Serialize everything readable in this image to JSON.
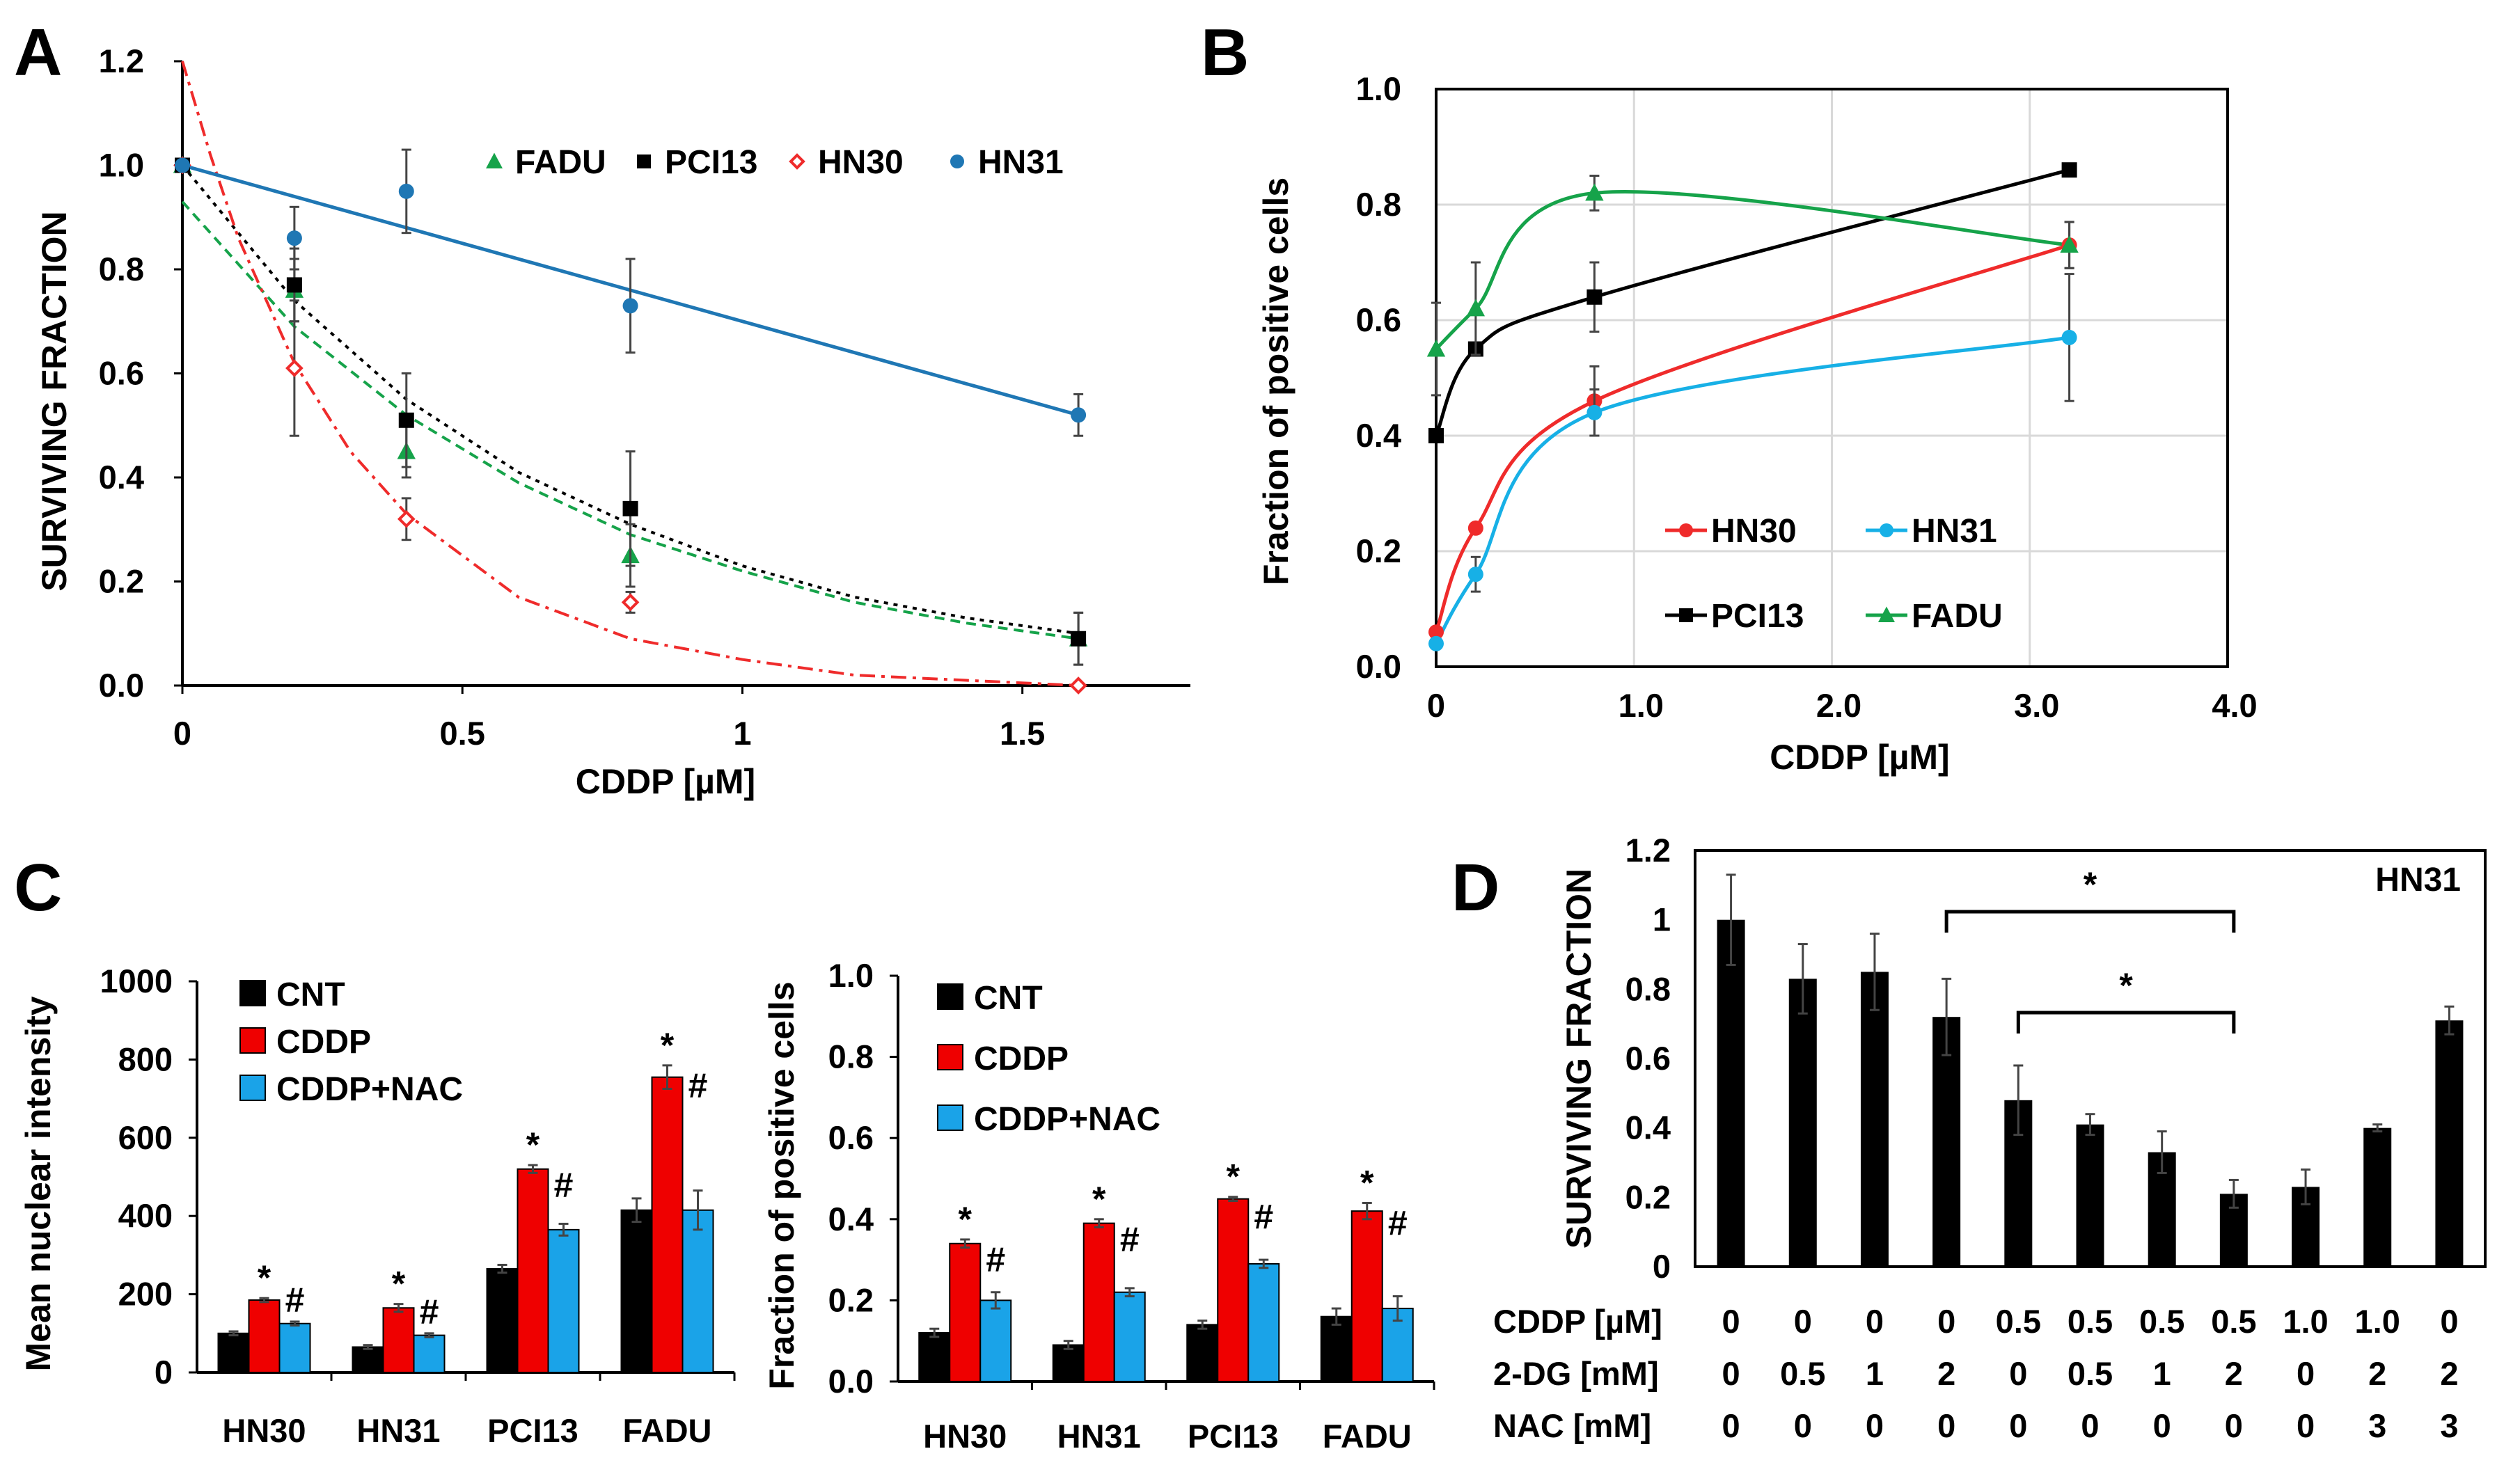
{
  "panels": {
    "A": "A",
    "B": "B",
    "C": "C",
    "D": "D"
  },
  "chart_data": [
    {
      "id": "A",
      "type": "scatter",
      "title": "",
      "xlabel": "CDDP [µM]",
      "ylabel": "SURVIVING FRACTION",
      "xlim": [
        0,
        1.8
      ],
      "ylim": [
        0,
        1.2
      ],
      "xticks": [
        "0",
        "0.5",
        "1",
        "1.5"
      ],
      "yticks": [
        "0.0",
        "0.2",
        "0.4",
        "0.6",
        "0.8",
        "1.0",
        "1.2"
      ],
      "legend_position": "top",
      "series": [
        {
          "name": "FADU",
          "color": "#16a34a",
          "marker": "triangle",
          "fit": "dashed",
          "x": [
            0,
            0.2,
            0.4,
            0.8,
            1.6
          ],
          "y": [
            1.0,
            0.76,
            0.45,
            0.25,
            0.09
          ],
          "err": [
            0.0,
            0.06,
            0.05,
            0.06,
            0.05
          ],
          "fit_curve": {
            "x": [
              0,
              0.2,
              0.4,
              0.6,
              0.8,
              1.0,
              1.2,
              1.4,
              1.6
            ],
            "y": [
              0.93,
              0.69,
              0.52,
              0.39,
              0.29,
              0.22,
              0.16,
              0.12,
              0.09
            ]
          }
        },
        {
          "name": "PCI13",
          "color": "#000000",
          "marker": "square",
          "fit": "dotted",
          "x": [
            0,
            0.2,
            0.4,
            0.8,
            1.6
          ],
          "y": [
            1.0,
            0.77,
            0.51,
            0.34,
            0.09
          ],
          "err": [
            0.0,
            0.07,
            0.09,
            0.11,
            0.05
          ],
          "fit_curve": {
            "x": [
              0,
              0.2,
              0.4,
              0.6,
              0.8,
              1.0,
              1.2,
              1.4,
              1.6
            ],
            "y": [
              1.0,
              0.74,
              0.55,
              0.41,
              0.31,
              0.23,
              0.17,
              0.13,
              0.1
            ]
          }
        },
        {
          "name": "HN30",
          "color": "#ef2b2b",
          "marker": "diamond",
          "fit": "dashdot",
          "x": [
            0,
            0.2,
            0.4,
            0.8,
            1.6
          ],
          "y": [
            1.0,
            0.61,
            0.32,
            0.16,
            0.0
          ],
          "err": [
            0.0,
            0.13,
            0.04,
            0.02,
            0.0
          ],
          "fit_curve": {
            "x": [
              0,
              0.05,
              0.1,
              0.2,
              0.3,
              0.4,
              0.6,
              0.8,
              1.0,
              1.2,
              1.4,
              1.6
            ],
            "y": [
              1.2,
              1.02,
              0.86,
              0.62,
              0.45,
              0.33,
              0.17,
              0.09,
              0.05,
              0.02,
              0.01,
              0.0
            ]
          }
        },
        {
          "name": "HN31",
          "color": "#1f77b4",
          "marker": "circle",
          "fit": "solid",
          "x": [
            0,
            0.2,
            0.4,
            0.8,
            1.6
          ],
          "y": [
            1.0,
            0.86,
            0.95,
            0.73,
            0.52
          ],
          "err": [
            0.0,
            0.06,
            0.08,
            0.09,
            0.04
          ],
          "fit_curve": {
            "x": [
              0,
              1.6
            ],
            "y": [
              1.0,
              0.52
            ]
          }
        }
      ]
    },
    {
      "id": "B",
      "type": "line",
      "title": "",
      "xlabel": "CDDP [µM]",
      "ylabel": "Fraction of positive cells",
      "xlim": [
        0,
        4.0
      ],
      "ylim": [
        0,
        1.0
      ],
      "xticks": [
        "0",
        "1.0",
        "2.0",
        "3.0",
        "4.0"
      ],
      "yticks": [
        "0.0",
        "0.2",
        "0.4",
        "0.6",
        "0.8",
        "1.0"
      ],
      "grid": true,
      "legend_position": "bottom-right",
      "series": [
        {
          "name": "HN30",
          "color": "#ef2b2b",
          "marker": "circle",
          "x": [
            0,
            0.2,
            0.8,
            3.2
          ],
          "y": [
            0.06,
            0.24,
            0.46,
            0.73
          ],
          "err": [
            0.0,
            0.0,
            0.06,
            0.04
          ]
        },
        {
          "name": "HN31",
          "color": "#17b0e6",
          "marker": "circle",
          "x": [
            0,
            0.2,
            0.8,
            3.2
          ],
          "y": [
            0.04,
            0.16,
            0.44,
            0.57
          ],
          "err": [
            0.0,
            0.03,
            0.04,
            0.11
          ]
        },
        {
          "name": "PCI13",
          "color": "#000000",
          "marker": "square",
          "x": [
            0,
            0.2,
            0.8,
            3.2
          ],
          "y": [
            0.4,
            0.55,
            0.64,
            0.86
          ],
          "err": [
            0.0,
            0.0,
            0.06,
            0.0
          ]
        },
        {
          "name": "FADU",
          "color": "#16a34a",
          "marker": "triangle",
          "x": [
            0,
            0.2,
            0.8,
            3.2
          ],
          "y": [
            0.55,
            0.62,
            0.82,
            0.73
          ],
          "err": [
            0.08,
            0.08,
            0.03,
            0.04
          ]
        }
      ]
    },
    {
      "id": "C1",
      "type": "bar",
      "title": "",
      "xlabel": "",
      "ylabel": "Mean nuclear intensity",
      "ylim": [
        0,
        1000
      ],
      "yticks": [
        "0",
        "200",
        "400",
        "600",
        "800",
        "1000"
      ],
      "categories": [
        "HN30",
        "HN31",
        "PCI13",
        "FADU"
      ],
      "legend_position": "top-left",
      "series": [
        {
          "name": "CNT",
          "color": "#000000",
          "values": [
            100,
            65,
            265,
            415
          ],
          "err": [
            5,
            5,
            10,
            30
          ]
        },
        {
          "name": "CDDP",
          "color": "#ef0000",
          "values": [
            185,
            165,
            520,
            755
          ],
          "err": [
            5,
            10,
            10,
            30
          ]
        },
        {
          "name": "CDDP+NAC",
          "color": "#1aa3e8",
          "values": [
            125,
            95,
            365,
            415
          ],
          "err": [
            5,
            5,
            15,
            50
          ]
        }
      ],
      "significance": [
        {
          "category": 0,
          "star": "*",
          "hash": "#"
        },
        {
          "category": 1,
          "star": "*",
          "hash": "#"
        },
        {
          "category": 2,
          "star": "*",
          "hash": "#"
        },
        {
          "category": 3,
          "star": "*",
          "hash": "#"
        }
      ]
    },
    {
      "id": "C2",
      "type": "bar",
      "title": "",
      "xlabel": "",
      "ylabel": "Fraction of positive cells",
      "ylim": [
        0,
        1.0
      ],
      "yticks": [
        "0.0",
        "0.2",
        "0.4",
        "0.6",
        "0.8",
        "1.0"
      ],
      "categories": [
        "HN30",
        "HN31",
        "PCI13",
        "FADU"
      ],
      "legend_position": "top",
      "series": [
        {
          "name": "CNT",
          "color": "#000000",
          "values": [
            0.12,
            0.09,
            0.14,
            0.16
          ],
          "err": [
            0.01,
            0.01,
            0.01,
            0.02
          ]
        },
        {
          "name": "CDDP",
          "color": "#ef0000",
          "values": [
            0.34,
            0.39,
            0.45,
            0.42
          ],
          "err": [
            0.01,
            0.01,
            0.005,
            0.02
          ]
        },
        {
          "name": "CDDP+NAC",
          "color": "#1aa3e8",
          "values": [
            0.2,
            0.22,
            0.29,
            0.18
          ],
          "err": [
            0.02,
            0.01,
            0.01,
            0.03
          ]
        }
      ],
      "significance": [
        {
          "category": 0,
          "star": "*",
          "hash": "#"
        },
        {
          "category": 1,
          "star": "*",
          "hash": "#"
        },
        {
          "category": 2,
          "star": "*",
          "hash": "#"
        },
        {
          "category": 3,
          "star": "*",
          "hash": "#"
        }
      ]
    },
    {
      "id": "D",
      "type": "bar",
      "title": "HN31",
      "xlabel": "",
      "ylabel": "SURVIVING FRACTION",
      "ylim": [
        0,
        1.2
      ],
      "yticks": [
        "0",
        "0.2",
        "0.4",
        "0.6",
        "0.8",
        "1",
        "1.2"
      ],
      "color": "#000000",
      "values": [
        1.0,
        0.83,
        0.85,
        0.72,
        0.48,
        0.41,
        0.33,
        0.21,
        0.23,
        0.4,
        0.71
      ],
      "err": [
        0.13,
        0.1,
        0.11,
        0.11,
        0.1,
        0.03,
        0.06,
        0.04,
        0.05,
        0.01,
        0.04
      ],
      "table_rows": [
        {
          "label": "CDDP [µM]",
          "values": [
            "0",
            "0",
            "0",
            "0",
            "0.5",
            "0.5",
            "0.5",
            "0.5",
            "1.0",
            "1.0",
            "0"
          ]
        },
        {
          "label": "2-DG  [mM]",
          "values": [
            "0",
            "0.5",
            "1",
            "2",
            "0",
            "0.5",
            "1",
            "2",
            "0",
            "2",
            "2"
          ]
        },
        {
          "label": "NAC   [mM]",
          "values": [
            "0",
            "0",
            "0",
            "0",
            "0",
            "0",
            "0",
            "0",
            "0",
            "3",
            "3"
          ]
        }
      ],
      "brackets": [
        {
          "from": 3,
          "to": 7,
          "label": "*"
        },
        {
          "from": 4,
          "to": 7,
          "label": "*"
        }
      ]
    }
  ]
}
